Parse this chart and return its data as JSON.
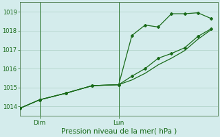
{
  "bg_color": "#d4ecec",
  "grid_color": "#b8d8d0",
  "line_color": "#1a6b1a",
  "spine_color": "#4a7a4a",
  "ylim": [
    1013.5,
    1019.5
  ],
  "yticks": [
    1014,
    1015,
    1016,
    1017,
    1018,
    1019
  ],
  "xlabel": "Pression niveau de la mer( hPa )",
  "xtick_labels": [
    "Dim",
    "Lun"
  ],
  "xtick_positions": [
    3,
    15
  ],
  "vline_positions": [
    3,
    15
  ],
  "xlim": [
    0,
    30
  ],
  "line1_x": [
    0,
    3,
    7,
    11,
    15,
    17,
    19,
    21,
    23,
    25,
    27,
    29
  ],
  "line1_y": [
    1013.9,
    1014.35,
    1014.7,
    1015.1,
    1015.15,
    1017.75,
    1018.3,
    1018.2,
    1018.9,
    1018.9,
    1018.95,
    1018.65
  ],
  "line2_x": [
    0,
    3,
    7,
    11,
    15,
    17,
    19,
    21,
    23,
    25,
    27,
    29
  ],
  "line2_y": [
    1013.9,
    1014.35,
    1014.7,
    1015.1,
    1015.15,
    1015.6,
    1016.0,
    1016.55,
    1016.8,
    1017.1,
    1017.7,
    1018.1
  ],
  "line3_x": [
    0,
    3,
    7,
    11,
    15,
    17,
    19,
    21,
    23,
    25,
    27,
    29
  ],
  "line3_y": [
    1013.9,
    1014.35,
    1014.7,
    1015.1,
    1015.15,
    1015.4,
    1015.75,
    1016.2,
    1016.55,
    1016.95,
    1017.55,
    1018.05
  ],
  "figsize": [
    3.2,
    2.0
  ],
  "dpi": 100,
  "marker": "D",
  "markersize": 2.0,
  "linewidth": 0.9,
  "ytick_fontsize": 6,
  "xtick_fontsize": 6.5,
  "xlabel_fontsize": 7.5
}
